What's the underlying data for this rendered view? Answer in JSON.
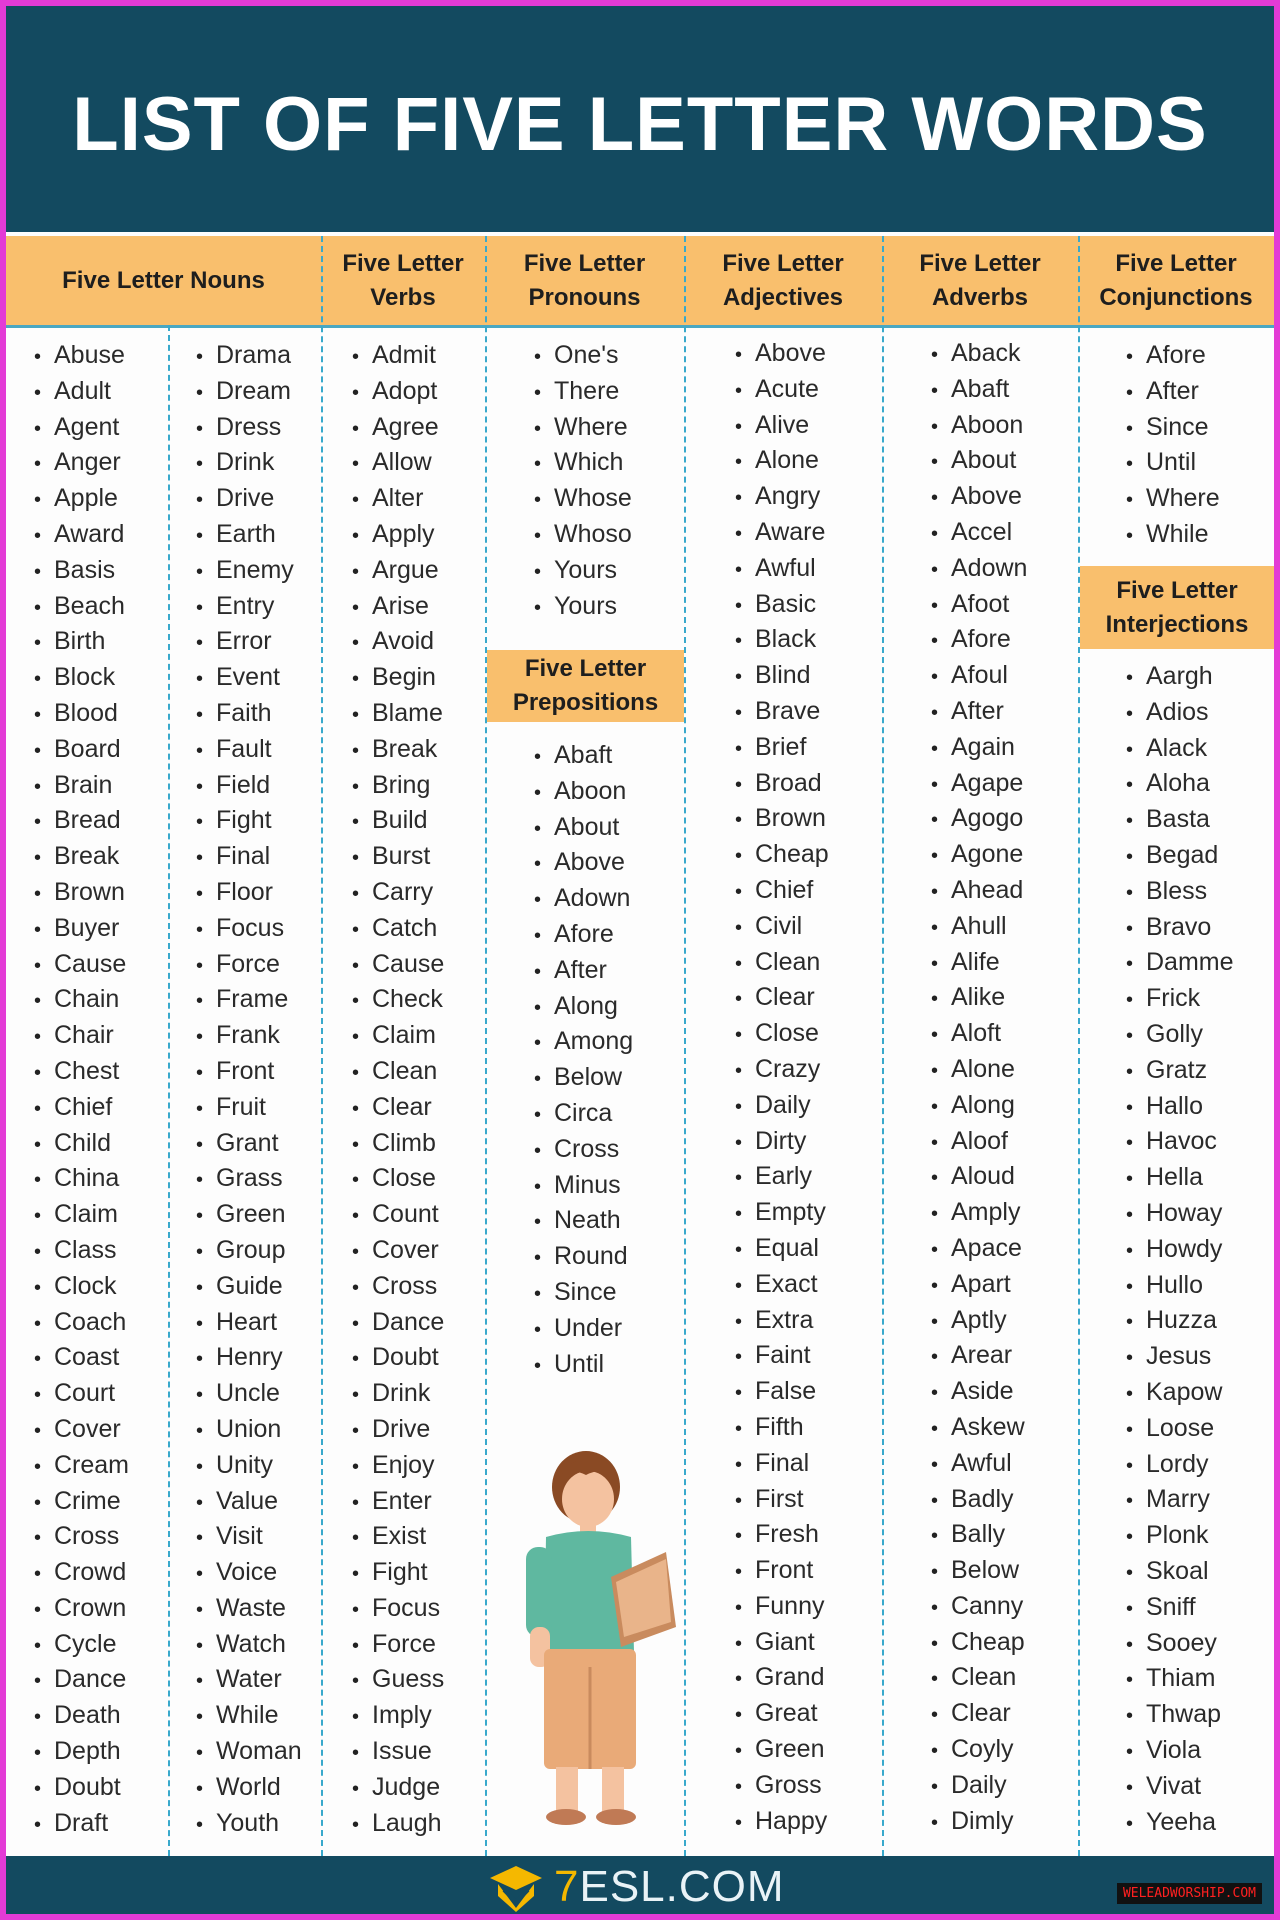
{
  "title": "LIST OF FIVE LETTER WORDS",
  "colors": {
    "banner": "#134a60",
    "header": "#f9bf6d",
    "divider": "#39a9cc",
    "border": "#e33bd6"
  },
  "columns": {
    "nouns": {
      "header": "Five Letter Nouns",
      "col1": [
        "Abuse",
        "Adult",
        "Agent",
        "Anger",
        "Apple",
        "Award",
        "Basis",
        "Beach",
        "Birth",
        "Block",
        "Blood",
        "Board",
        "Brain",
        "Bread",
        "Break",
        "Brown",
        "Buyer",
        "Cause",
        "Chain",
        "Chair",
        "Chest",
        "Chief",
        "Child",
        "China",
        "Claim",
        "Class",
        "Clock",
        "Coach",
        "Coast",
        "Court",
        "Cover",
        "Cream",
        "Crime",
        "Cross",
        "Crowd",
        "Crown",
        "Cycle",
        "Dance",
        "Death",
        "Depth",
        "Doubt",
        "Draft"
      ],
      "col2": [
        "Drama",
        "Dream",
        "Dress",
        "Drink",
        "Drive",
        "Earth",
        "Enemy",
        "Entry",
        "Error",
        "Event",
        "Faith",
        "Fault",
        "Field",
        "Fight",
        "Final",
        "Floor",
        "Focus",
        "Force",
        "Frame",
        "Frank",
        "Front",
        "Fruit",
        "Grant",
        "Grass",
        "Green",
        "Group",
        "Guide",
        "Heart",
        "Henry",
        "Uncle",
        "Union",
        "Unity",
        "Value",
        "Visit",
        "Voice",
        "Waste",
        "Watch",
        "Water",
        "While",
        "Woman",
        "World",
        "Youth"
      ]
    },
    "verbs": {
      "header": "Five Letter Verbs",
      "items": [
        "Admit",
        "Adopt",
        "Agree",
        "Allow",
        "Alter",
        "Apply",
        "Argue",
        "Arise",
        "Avoid",
        "Begin",
        "Blame",
        "Break",
        "Bring",
        "Build",
        "Burst",
        "Carry",
        "Catch",
        "Cause",
        "Check",
        "Claim",
        "Clean",
        "Clear",
        "Climb",
        "Close",
        "Count",
        "Cover",
        "Cross",
        "Dance",
        "Doubt",
        "Drink",
        "Drive",
        "Enjoy",
        "Enter",
        "Exist",
        "Fight",
        "Focus",
        "Force",
        "Guess",
        "Imply",
        "Issue",
        "Judge",
        "Laugh"
      ]
    },
    "pronouns": {
      "header": "Five Letter Pronouns",
      "items": [
        "One's",
        "There",
        "Where",
        "Which",
        "Whose",
        "Whoso",
        "Yours",
        "Yours"
      ]
    },
    "prepositions": {
      "header": "Five Letter Prepositions",
      "items": [
        "Abaft",
        "Aboon",
        "About",
        "Above",
        "Adown",
        "Afore",
        "After",
        "Along",
        "Among",
        "Below",
        "Circa",
        "Cross",
        "Minus",
        "Neath",
        "Round",
        "Since",
        "Under",
        "Until"
      ]
    },
    "adjectives": {
      "header": "Five Letter Adjectives",
      "items": [
        "Above",
        "Acute",
        "Alive",
        "Alone",
        "Angry",
        "Aware",
        "Awful",
        "Basic",
        "Black",
        "Blind",
        "Brave",
        "Brief",
        "Broad",
        "Brown",
        "Cheap",
        "Chief",
        "Civil",
        "Clean",
        "Clear",
        "Close",
        "Crazy",
        "Daily",
        "Dirty",
        "Early",
        "Empty",
        "Equal",
        "Exact",
        "Extra",
        "Faint",
        "False",
        "Fifth",
        "Final",
        "First",
        "Fresh",
        "Front",
        "Funny",
        "Giant",
        "Grand",
        "Great",
        "Green",
        "Gross",
        "Happy"
      ]
    },
    "adverbs": {
      "header": "Five Letter Adverbs",
      "items": [
        "Aback",
        "Abaft",
        "Aboon",
        "About",
        "Above",
        "Accel",
        "Adown",
        "Afoot",
        "Afore",
        "Afoul",
        "After",
        "Again",
        "Agape",
        "Agogo",
        "Agone",
        "Ahead",
        "Ahull",
        "Alife",
        "Alike",
        "Aloft",
        "Alone",
        "Along",
        "Aloof",
        "Aloud",
        "Amply",
        "Apace",
        "Apart",
        "Aptly",
        "Arear",
        "Aside",
        "Askew",
        "Awful",
        "Badly",
        "Bally",
        "Below",
        "Canny",
        "Cheap",
        "Clean",
        "Clear",
        "Coyly",
        "Daily",
        "Dimly"
      ]
    },
    "conjunctions": {
      "header": "Five Letter Conjunctions",
      "items": [
        "Afore",
        "After",
        "Since",
        "Until",
        "Where",
        "While"
      ]
    },
    "interjections": {
      "header": "Five Letter Interjections",
      "items": [
        "Aargh",
        "Adios",
        "Alack",
        "Aloha",
        "Basta",
        "Begad",
        "Bless",
        "Bravo",
        "Damme",
        "Frick",
        "Golly",
        "Gratz",
        "Hallo",
        "Havoc",
        "Hella",
        "Howay",
        "Howdy",
        "Hullo",
        "Huzza",
        "Jesus",
        "Kapow",
        "Loose",
        "Lordy",
        "Marry",
        "Plonk",
        "Skoal",
        "Sniff",
        "Sooey",
        "Thiam",
        "Thwap",
        "Viola",
        "Vivat",
        "Yeeha"
      ]
    }
  },
  "footer": {
    "logo_prefix": "7",
    "logo_text": "ESL.COM",
    "watermark": "WELEADWORSHIP.COM"
  },
  "icons": {
    "logo": "graduation-cap-icon",
    "illustration": "boy-reading-book"
  }
}
